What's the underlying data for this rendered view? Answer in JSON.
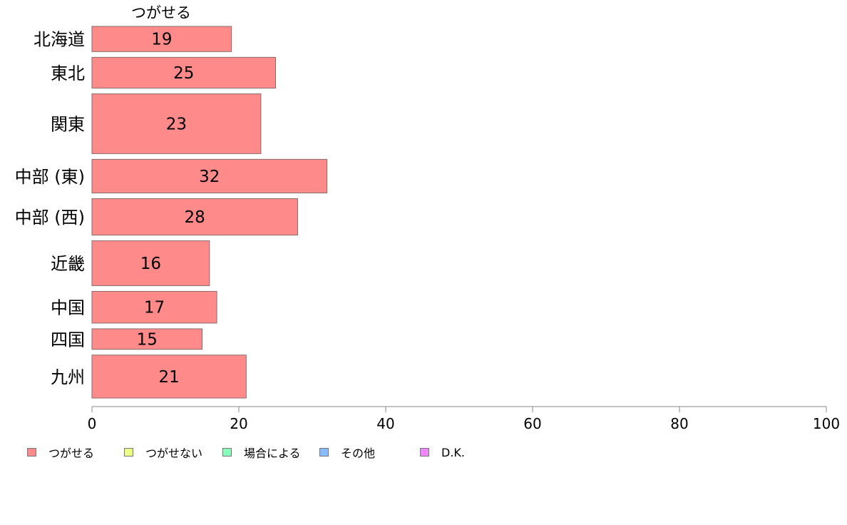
{
  "chart_data": {
    "type": "bar",
    "orientation": "horizontal",
    "stacked": true,
    "title": "つがせる",
    "categories": [
      "北海道",
      "東北",
      "関東",
      "中部 (東)",
      "中部 (西)",
      "近畿",
      "中国",
      "四国",
      "九州"
    ],
    "row_weight": [
      27,
      33,
      64,
      36,
      39,
      48,
      34,
      22,
      46
    ],
    "series": [
      {
        "name": "つがせる",
        "color": "#ff8a8a",
        "values": [
          19,
          25,
          23,
          32,
          28,
          16,
          17,
          15,
          21
        ]
      },
      {
        "name": "つがせない",
        "color": "#eeff88",
        "values": [
          0,
          0,
          0,
          0,
          0,
          0,
          0,
          0,
          0
        ]
      },
      {
        "name": "場合による",
        "color": "#88ffbb",
        "values": [
          0,
          0,
          0,
          0,
          0,
          0,
          0,
          0,
          0
        ]
      },
      {
        "name": "その他",
        "color": "#88bbff",
        "values": [
          0,
          0,
          0,
          0,
          0,
          0,
          0,
          0,
          0
        ]
      },
      {
        "name": "D.K.",
        "color": "#ee88ff",
        "values": [
          0,
          0,
          0,
          0,
          0,
          0,
          0,
          0,
          0
        ]
      }
    ],
    "xlim": [
      0,
      100
    ],
    "xticks": [
      0,
      20,
      40,
      60,
      80,
      100
    ],
    "xlabel": "",
    "ylabel": "",
    "grid": false,
    "legend_position": "bottom-left"
  }
}
